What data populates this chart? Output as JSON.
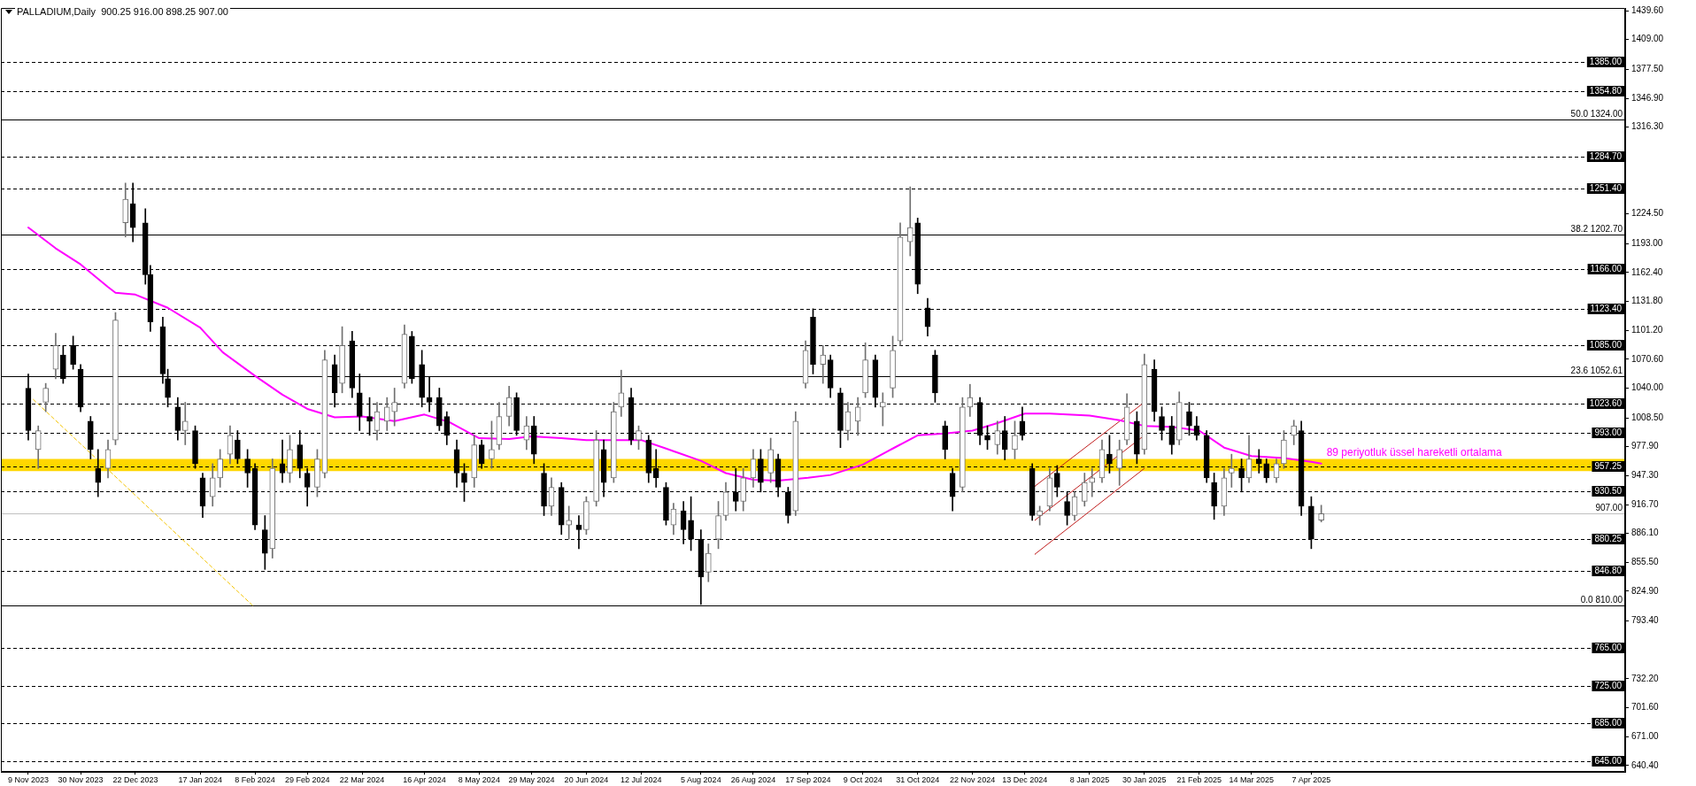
{
  "chart_data": {
    "type": "candlestick",
    "title": "PALLADIUM,Daily  900.25 916.00 898.25 907.00",
    "x": [
      "2023-11-09",
      "2023-11-13",
      "2023-11-16",
      "2023-11-20",
      "2023-11-23",
      "2023-11-27",
      "2023-11-30",
      "2023-12-04",
      "2023-12-07",
      "2023-12-11",
      "2023-12-14",
      "2023-12-18",
      "2023-12-21",
      "2023-12-26",
      "2023-12-28",
      "2024-01-02",
      "2024-01-04",
      "2024-01-08",
      "2024-01-11",
      "2024-01-15",
      "2024-01-18",
      "2024-01-22",
      "2024-01-25",
      "2024-01-29",
      "2024-02-01",
      "2024-02-05",
      "2024-02-08",
      "2024-02-12",
      "2024-02-15",
      "2024-02-19",
      "2024-02-22",
      "2024-02-26",
      "2024-02-29",
      "2024-03-04",
      "2024-03-07",
      "2024-03-11",
      "2024-03-14",
      "2024-03-18",
      "2024-03-21",
      "2024-03-25",
      "2024-03-28",
      "2024-04-01",
      "2024-04-04",
      "2024-04-08",
      "2024-04-11",
      "2024-04-15",
      "2024-04-18",
      "2024-04-22",
      "2024-04-25",
      "2024-04-29",
      "2024-05-02",
      "2024-05-06",
      "2024-05-09",
      "2024-05-13",
      "2024-05-16",
      "2024-05-20",
      "2024-05-23",
      "2024-05-27",
      "2024-05-30",
      "2024-06-03",
      "2024-06-06",
      "2024-06-10",
      "2024-06-13",
      "2024-06-17",
      "2024-06-20",
      "2024-06-24",
      "2024-06-27",
      "2024-07-01",
      "2024-07-04",
      "2024-07-08",
      "2024-07-11",
      "2024-07-15",
      "2024-07-18",
      "2024-07-22",
      "2024-07-25",
      "2024-07-29",
      "2024-08-01",
      "2024-08-05",
      "2024-08-08",
      "2024-08-12",
      "2024-08-15",
      "2024-08-19",
      "2024-08-22",
      "2024-08-26",
      "2024-08-29",
      "2024-09-02",
      "2024-09-05",
      "2024-09-09",
      "2024-09-12",
      "2024-09-16",
      "2024-09-19",
      "2024-09-23",
      "2024-09-26",
      "2024-09-30",
      "2024-10-03",
      "2024-10-07",
      "2024-10-10",
      "2024-10-14",
      "2024-10-17",
      "2024-10-21",
      "2024-10-24",
      "2024-10-28",
      "2024-10-31",
      "2024-11-04",
      "2024-11-07",
      "2024-11-11",
      "2024-11-14",
      "2024-11-18",
      "2024-11-21",
      "2024-11-25",
      "2024-11-28",
      "2024-12-02",
      "2024-12-05",
      "2024-12-09",
      "2024-12-12",
      "2024-12-16",
      "2024-12-19",
      "2024-12-23",
      "2024-12-26",
      "2024-12-30",
      "2025-01-02",
      "2025-01-06",
      "2025-01-09",
      "2025-01-13",
      "2025-01-16",
      "2025-01-20",
      "2025-01-23",
      "2025-01-27",
      "2025-01-30",
      "2025-02-03",
      "2025-02-06",
      "2025-02-10",
      "2025-02-13",
      "2025-02-17",
      "2025-02-20",
      "2025-02-24",
      "2025-02-27",
      "2025-03-03",
      "2025-03-06",
      "2025-03-10",
      "2025-03-13",
      "2025-03-17",
      "2025-03-20",
      "2025-03-24",
      "2025-03-27",
      "2025-03-31",
      "2025-04-03",
      "2025-04-07",
      "2025-04-11"
    ],
    "ohlc": [
      [
        1040,
        1055,
        985,
        995
      ],
      [
        975,
        1000,
        955,
        995
      ],
      [
        1025,
        1045,
        1015,
        1040
      ],
      [
        1060,
        1098,
        1050,
        1085
      ],
      [
        1075,
        1085,
        1045,
        1050
      ],
      [
        1085,
        1095,
        1060,
        1065
      ],
      [
        1060,
        1065,
        1015,
        1020
      ],
      [
        1005,
        1010,
        965,
        975
      ],
      [
        955,
        975,
        925,
        940
      ],
      [
        955,
        985,
        945,
        975
      ],
      [
        985,
        1120,
        980,
        1112
      ],
      [
        1215,
        1257,
        1200,
        1240
      ],
      [
        1235,
        1257,
        1195,
        1210
      ],
      [
        1215,
        1230,
        1150,
        1160
      ],
      [
        1160,
        1170,
        1100,
        1110
      ],
      [
        1105,
        1115,
        1045,
        1055
      ],
      [
        1050,
        1060,
        1020,
        1030
      ],
      [
        1020,
        1030,
        985,
        995
      ],
      [
        995,
        1025,
        980,
        1005
      ],
      [
        995,
        1000,
        955,
        960
      ],
      [
        945,
        950,
        903,
        915
      ],
      [
        925,
        960,
        915,
        945
      ],
      [
        945,
        975,
        935,
        965
      ],
      [
        970,
        1000,
        960,
        990
      ],
      [
        985,
        995,
        960,
        965
      ],
      [
        965,
        975,
        935,
        950
      ],
      [
        955,
        960,
        890,
        895
      ],
      [
        890,
        905,
        848,
        865
      ],
      [
        870,
        965,
        860,
        955
      ],
      [
        960,
        985,
        940,
        950
      ],
      [
        950,
        990,
        940,
        975
      ],
      [
        980,
        995,
        945,
        955
      ],
      [
        950,
        955,
        915,
        935
      ],
      [
        935,
        975,
        925,
        965
      ],
      [
        950,
        1080,
        945,
        1070
      ],
      [
        1065,
        1075,
        1020,
        1035
      ],
      [
        1045,
        1105,
        1035,
        1085
      ],
      [
        1090,
        1100,
        1030,
        1040
      ],
      [
        1035,
        1055,
        995,
        1010
      ],
      [
        1010,
        1030,
        990,
        1005
      ],
      [
        995,
        1025,
        985,
        1015
      ],
      [
        1005,
        1030,
        995,
        1020
      ],
      [
        1015,
        1040,
        1000,
        1025
      ],
      [
        1045,
        1107,
        1040,
        1097
      ],
      [
        1095,
        1100,
        1045,
        1050
      ],
      [
        1065,
        1080,
        1020,
        1030
      ],
      [
        1030,
        1052,
        1015,
        1025
      ],
      [
        1030,
        1040,
        995,
        1000
      ],
      [
        1010,
        1015,
        980,
        990
      ],
      [
        975,
        985,
        935,
        950
      ],
      [
        950,
        960,
        920,
        940
      ],
      [
        945,
        990,
        935,
        980
      ],
      [
        980,
        985,
        955,
        960
      ],
      [
        965,
        1005,
        955,
        975
      ],
      [
        980,
        1025,
        975,
        1010
      ],
      [
        1010,
        1042,
        1000,
        1030
      ],
      [
        1030,
        1035,
        990,
        995
      ],
      [
        985,
        1010,
        975,
        1000
      ],
      [
        1000,
        1010,
        960,
        970
      ],
      [
        950,
        960,
        905,
        915
      ],
      [
        915,
        945,
        905,
        935
      ],
      [
        935,
        940,
        885,
        895
      ],
      [
        895,
        915,
        880,
        900
      ],
      [
        895,
        905,
        870,
        890
      ],
      [
        890,
        925,
        885,
        920
      ],
      [
        920,
        995,
        915,
        985
      ],
      [
        975,
        985,
        925,
        940
      ],
      [
        945,
        1025,
        940,
        1015
      ],
      [
        1020,
        1059,
        1010,
        1035
      ],
      [
        1030,
        1040,
        980,
        985
      ],
      [
        985,
        1000,
        975,
        995
      ],
      [
        985,
        990,
        940,
        950
      ],
      [
        955,
        975,
        935,
        945
      ],
      [
        935,
        940,
        895,
        900
      ],
      [
        895,
        918,
        885,
        912
      ],
      [
        910,
        920,
        875,
        890
      ],
      [
        900,
        925,
        868,
        880
      ],
      [
        880,
        890,
        811,
        840
      ],
      [
        845,
        875,
        835,
        865
      ],
      [
        880,
        920,
        870,
        905
      ],
      [
        905,
        940,
        900,
        930
      ],
      [
        930,
        955,
        910,
        920
      ],
      [
        920,
        955,
        910,
        945
      ],
      [
        945,
        975,
        935,
        965
      ],
      [
        965,
        975,
        930,
        940
      ],
      [
        950,
        987,
        940,
        975
      ],
      [
        965,
        970,
        925,
        935
      ],
      [
        930,
        935,
        897,
        905
      ],
      [
        910,
        1015,
        905,
        1005
      ],
      [
        1045,
        1090,
        1040,
        1080
      ],
      [
        1115,
        1124,
        1055,
        1065
      ],
      [
        1065,
        1085,
        1045,
        1075
      ],
      [
        1070,
        1075,
        1030,
        1040
      ],
      [
        1035,
        1040,
        977,
        995
      ],
      [
        995,
        1025,
        985,
        1015
      ],
      [
        1005,
        1030,
        990,
        1020
      ],
      [
        1035,
        1088,
        1030,
        1070
      ],
      [
        1070,
        1075,
        1020,
        1030
      ],
      [
        1020,
        1035,
        1000,
        1025
      ],
      [
        1040,
        1095,
        1030,
        1080
      ],
      [
        1090,
        1215,
        1085,
        1200
      ],
      [
        1195,
        1253,
        1180,
        1210
      ],
      [
        1215,
        1220,
        1140,
        1150
      ],
      [
        1125,
        1135,
        1095,
        1105
      ],
      [
        1075,
        1080,
        1025,
        1035
      ],
      [
        1000,
        1005,
        965,
        975
      ],
      [
        950,
        955,
        910,
        925
      ],
      [
        935,
        1030,
        930,
        1020
      ],
      [
        1020,
        1044,
        1010,
        1030
      ],
      [
        1025,
        1030,
        980,
        990
      ],
      [
        990,
        1000,
        975,
        985
      ],
      [
        980,
        1005,
        970,
        995
      ],
      [
        995,
        1010,
        964,
        975
      ],
      [
        975,
        1005,
        965,
        990
      ],
      [
        1005,
        1020,
        985,
        990
      ],
      [
        955,
        960,
        900,
        905
      ],
      [
        905,
        915,
        895,
        910
      ],
      [
        915,
        955,
        910,
        945
      ],
      [
        950,
        958,
        925,
        935
      ],
      [
        920,
        930,
        895,
        905
      ],
      [
        905,
        930,
        900,
        925
      ],
      [
        920,
        950,
        915,
        940
      ],
      [
        940,
        955,
        925,
        945
      ],
      [
        945,
        985,
        940,
        975
      ],
      [
        970,
        990,
        950,
        960
      ],
      [
        955,
        985,
        937,
        975
      ],
      [
        985,
        1034,
        980,
        1020
      ],
      [
        1005,
        1015,
        960,
        970
      ],
      [
        975,
        1076,
        970,
        1065
      ],
      [
        1060,
        1070,
        1005,
        1015
      ],
      [
        1010,
        1020,
        985,
        995
      ],
      [
        1000,
        1010,
        970,
        980
      ],
      [
        985,
        1036,
        980,
        1025
      ],
      [
        1015,
        1025,
        990,
        1000
      ],
      [
        1000,
        1010,
        985,
        990
      ],
      [
        990,
        995,
        940,
        945
      ],
      [
        940,
        950,
        901,
        915
      ],
      [
        915,
        955,
        905,
        945
      ],
      [
        950,
        970,
        935,
        955
      ],
      [
        955,
        965,
        930,
        945
      ],
      [
        945,
        990,
        940,
        965
      ],
      [
        965,
        975,
        950,
        960
      ],
      [
        960,
        965,
        940,
        945
      ],
      [
        945,
        965,
        940,
        960
      ],
      [
        960,
        995,
        955,
        985
      ],
      [
        990,
        1006,
        980,
        1000
      ],
      [
        995,
        1005,
        905,
        915
      ],
      [
        915,
        925,
        870,
        880
      ],
      [
        900.25,
        916,
        898.25,
        907
      ]
    ],
    "colors": [
      "#000000",
      "#707070",
      "#707070",
      "#707070",
      "#000000",
      "#000000",
      "#000000",
      "#000000",
      "#000000",
      "#707070",
      "#707070",
      "#707070",
      "#000000",
      "#000000",
      "#000000",
      "#000000",
      "#000000",
      "#000000",
      "#707070",
      "#000000",
      "#000000",
      "#707070",
      "#707070",
      "#707070",
      "#000000",
      "#000000",
      "#000000",
      "#000000",
      "#707070",
      "#000000",
      "#707070",
      "#000000",
      "#000000",
      "#707070",
      "#707070",
      "#000000",
      "#707070",
      "#000000",
      "#000000",
      "#000000",
      "#707070",
      "#707070",
      "#707070",
      "#707070",
      "#000000",
      "#000000",
      "#000000",
      "#000000",
      "#000000",
      "#000000",
      "#000000",
      "#707070",
      "#000000",
      "#707070",
      "#707070",
      "#707070",
      "#000000",
      "#707070",
      "#000000",
      "#000000",
      "#707070",
      "#000000",
      "#707070",
      "#000000",
      "#707070",
      "#707070",
      "#000000",
      "#707070",
      "#707070",
      "#000000",
      "#707070",
      "#000000",
      "#000000",
      "#000000",
      "#707070",
      "#000000",
      "#000000",
      "#000000",
      "#707070",
      "#707070",
      "#707070",
      "#000000",
      "#707070",
      "#707070",
      "#000000",
      "#707070",
      "#000000",
      "#000000",
      "#707070",
      "#707070",
      "#000000",
      "#707070",
      "#000000",
      "#000000",
      "#707070",
      "#707070",
      "#707070",
      "#000000",
      "#707070",
      "#707070",
      "#707070",
      "#707070",
      "#000000",
      "#000000",
      "#000000",
      "#000000",
      "#000000",
      "#707070",
      "#707070",
      "#000000",
      "#000000",
      "#707070",
      "#000000",
      "#707070",
      "#000000",
      "#000000",
      "#707070",
      "#707070",
      "#000000",
      "#000000",
      "#707070",
      "#707070",
      "#707070",
      "#707070",
      "#000000",
      "#707070",
      "#707070",
      "#000000",
      "#707070",
      "#000000",
      "#000000",
      "#000000",
      "#707070",
      "#000000",
      "#000000",
      "#000000",
      "#000000",
      "#707070",
      "#707070",
      "#000000",
      "#707070",
      "#000000",
      "#000000",
      "#707070",
      "#707070",
      "#707070",
      "#000000",
      "#000000",
      "#707070"
    ],
    "series": [
      {
        "type": "line",
        "name": "89 periyotluk üssel hareketli ortalama",
        "color": "#ff00ff",
        "x": [
          "2023-11-09",
          "2023-11-20",
          "2023-11-30",
          "2023-12-11",
          "2023-12-14",
          "2023-12-22",
          "2024-01-04",
          "2024-01-17",
          "2024-01-26",
          "2024-02-08",
          "2024-02-19",
          "2024-02-29",
          "2024-03-11",
          "2024-03-22",
          "2024-04-04",
          "2024-04-16",
          "2024-04-26",
          "2024-05-08",
          "2024-05-20",
          "2024-05-29",
          "2024-06-10",
          "2024-06-20",
          "2024-07-01",
          "2024-07-12",
          "2024-07-22",
          "2024-08-05",
          "2024-08-15",
          "2024-08-26",
          "2024-09-05",
          "2024-09-17",
          "2024-09-26",
          "2024-10-09",
          "2024-10-21",
          "2024-10-31",
          "2024-11-11",
          "2024-11-22",
          "2024-12-02",
          "2024-12-13",
          "2024-12-23",
          "2025-01-08",
          "2025-01-20",
          "2025-01-30",
          "2025-02-10",
          "2025-02-21",
          "2025-03-03",
          "2025-03-14",
          "2025-03-27",
          "2025-04-07",
          "2025-04-11"
        ],
        "values": [
          1210,
          1188,
          1171,
          1147,
          1141,
          1139,
          1125,
          1104,
          1078,
          1053,
          1033,
          1018,
          1009,
          1010,
          1005,
          1012,
          1004,
          987,
          986,
          989,
          987,
          985,
          985,
          985,
          976,
          963,
          950,
          943,
          942,
          945,
          948,
          959,
          976,
          990,
          992,
          995,
          1003,
          1013,
          1013,
          1011,
          1006,
          1000,
          999,
          995,
          977,
          968,
          966,
          962,
          960
        ]
      },
      {
        "type": "line",
        "color": "#c01e1e",
        "x": [
          "2024-12-17",
          "2025-01-30"
        ],
        "values": [
          936,
          1025
        ]
      },
      {
        "type": "line",
        "color": "#c01e1e",
        "x": [
          "2024-12-17",
          "2025-01-30"
        ],
        "values": [
          900,
          990
        ]
      },
      {
        "type": "line",
        "color": "#c01e1e",
        "x": [
          "2024-12-17",
          "2025-01-30"
        ],
        "values": [
          864,
          955
        ]
      },
      {
        "type": "line",
        "color": "#f5c400",
        "line_style": "dashed",
        "x": [
          "2023-11-11",
          "2024-02-07"
        ],
        "values": [
          1028,
          810
        ]
      }
    ],
    "bands": [
      {
        "axis": "y",
        "from": 952,
        "to": 965,
        "color": "#ffd700"
      }
    ],
    "xlim": [
      "2023-10-29",
      "2025-08-11"
    ],
    "xticks": [
      {
        "value": "2023-11-09",
        "label": "9 Nov 2023"
      },
      {
        "value": "2023-11-30",
        "label": "30 Nov 2023"
      },
      {
        "value": "2023-12-22",
        "label": "22 Dec 2023"
      },
      {
        "value": "2024-01-17",
        "label": "17 Jan 2024"
      },
      {
        "value": "2024-02-08",
        "label": "8 Feb 2024"
      },
      {
        "value": "2024-02-29",
        "label": "29 Feb 2024"
      },
      {
        "value": "2024-03-22",
        "label": "22 Mar 2024"
      },
      {
        "value": "2024-04-16",
        "label": "16 Apr 2024"
      },
      {
        "value": "2024-05-08",
        "label": "8 May 2024"
      },
      {
        "value": "2024-05-29",
        "label": "29 May 2024"
      },
      {
        "value": "2024-06-20",
        "label": "20 Jun 2024"
      },
      {
        "value": "2024-07-12",
        "label": "12 Jul 2024"
      },
      {
        "value": "2024-08-05",
        "label": "5 Aug 2024"
      },
      {
        "value": "2024-08-26",
        "label": "26 Aug 2024"
      },
      {
        "value": "2024-09-17",
        "label": "17 Sep 2024"
      },
      {
        "value": "2024-10-09",
        "label": "9 Oct 2024"
      },
      {
        "value": "2024-10-31",
        "label": "31 Oct 2024"
      },
      {
        "value": "2024-11-22",
        "label": "22 Nov 2024"
      },
      {
        "value": "2024-12-13",
        "label": "13 Dec 2024"
      },
      {
        "value": "2025-01-08",
        "label": "8 Jan 2025"
      },
      {
        "value": "2025-01-30",
        "label": "30 Jan 2025"
      },
      {
        "value": "2025-02-21",
        "label": "21 Feb 2025"
      },
      {
        "value": "2025-03-14",
        "label": "14 Mar 2025"
      },
      {
        "value": "2025-04-07",
        "label": "7 Apr 2025"
      }
    ],
    "ylim": [
      633.5,
      1442.5
    ],
    "yticks": [
      {
        "value": 1439.6,
        "label": "1439.60"
      },
      {
        "value": 1409,
        "label": "1409.00"
      },
      {
        "value": 1377.5,
        "label": "1377.50"
      },
      {
        "value": 1346.9,
        "label": "1346.90"
      },
      {
        "value": 1316.3,
        "label": "1316.30"
      },
      {
        "value": 1224.5,
        "label": "1224.50"
      },
      {
        "value": 1193,
        "label": "1193.00"
      },
      {
        "value": 1162.4,
        "label": "1162.40"
      },
      {
        "value": 1131.8,
        "label": "1131.80"
      },
      {
        "value": 1101.2,
        "label": "1101.20"
      },
      {
        "value": 1070.6,
        "label": "1070.60"
      },
      {
        "value": 1040,
        "label": "1040.00"
      },
      {
        "value": 1008.5,
        "label": "1008.50"
      },
      {
        "value": 977.9,
        "label": "977.90"
      },
      {
        "value": 947.3,
        "label": "947.30"
      },
      {
        "value": 916.7,
        "label": "916.70"
      },
      {
        "value": 886.1,
        "label": "886.10"
      },
      {
        "value": 855.5,
        "label": "855.50"
      },
      {
        "value": 824.9,
        "label": "824.90"
      },
      {
        "value": 793.4,
        "label": "793.40"
      },
      {
        "value": 732.2,
        "label": "732.20"
      },
      {
        "value": 701.6,
        "label": "701.60"
      },
      {
        "value": 671,
        "label": "671.00"
      },
      {
        "value": 640.4,
        "label": "640.40"
      }
    ],
    "ref_lines": [
      {
        "axis": "y",
        "value": 1385,
        "label": "1385.00",
        "color": "#000000",
        "line_style": "dashed"
      },
      {
        "axis": "y",
        "value": 1354.8,
        "label": "1354.80",
        "color": "#000000",
        "line_style": "dashed"
      },
      {
        "axis": "y",
        "value": 1324,
        "label": "50.0 1324.00",
        "color": "#000000",
        "line_style": "solid"
      },
      {
        "axis": "y",
        "value": 1284.7,
        "label": "1284.70",
        "color": "#000000",
        "line_style": "dashed"
      },
      {
        "axis": "y",
        "value": 1251.4,
        "label": "1251.40",
        "color": "#000000",
        "line_style": "dashed"
      },
      {
        "axis": "y",
        "value": 1202.7,
        "label": "38.2 1202.70",
        "color": "#000000",
        "line_style": "solid"
      },
      {
        "axis": "y",
        "value": 1166,
        "label": "1166.00",
        "color": "#000000",
        "line_style": "dashed"
      },
      {
        "axis": "y",
        "value": 1123.4,
        "label": "1123.40",
        "color": "#000000",
        "line_style": "dashed"
      },
      {
        "axis": "y",
        "value": 1085,
        "label": "1085.00",
        "color": "#000000",
        "line_style": "dashed"
      },
      {
        "axis": "y",
        "value": 1052.61,
        "label": "23.6 1052.61",
        "color": "#000000",
        "line_style": "solid"
      },
      {
        "axis": "y",
        "value": 1023.6,
        "label": "1023.60",
        "color": "#000000",
        "line_style": "dashed"
      },
      {
        "axis": "y",
        "value": 993,
        "label": "993.00",
        "color": "#000000",
        "line_style": "dashed"
      },
      {
        "axis": "y",
        "value": 957.25,
        "label": "957.25",
        "color": "#000000",
        "line_style": "dashed"
      },
      {
        "axis": "y",
        "value": 930.5,
        "label": "930.50",
        "color": "#000000",
        "line_style": "dashed"
      },
      {
        "axis": "y",
        "value": 907,
        "label": "907.00",
        "color": "#c0c0c0",
        "line_style": "solid"
      },
      {
        "axis": "y",
        "value": 880.25,
        "label": "880.25",
        "color": "#000000",
        "line_style": "dashed"
      },
      {
        "axis": "y",
        "value": 846.8,
        "label": "846.80",
        "color": "#000000",
        "line_style": "dashed"
      },
      {
        "axis": "y",
        "value": 810,
        "label": "0.0 810.00",
        "color": "#000000",
        "line_style": "solid"
      },
      {
        "axis": "y",
        "value": 765,
        "label": "765.00",
        "color": "#000000",
        "line_style": "dashed"
      },
      {
        "axis": "y",
        "value": 725,
        "label": "725.00",
        "color": "#000000",
        "line_style": "dashed"
      },
      {
        "axis": "y",
        "value": 685,
        "label": "685.00",
        "color": "#000000",
        "line_style": "dashed"
      },
      {
        "axis": "y",
        "value": 645,
        "label": "645.00",
        "color": "#000000",
        "line_style": "dashed"
      }
    ]
  }
}
